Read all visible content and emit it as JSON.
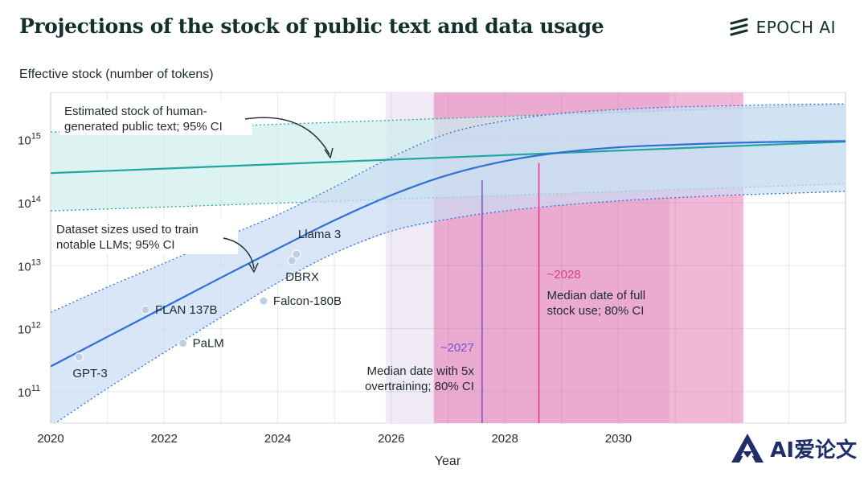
{
  "header": {
    "title": "Projections of the stock of public text and data usage",
    "logo_text": "EPOCH AI"
  },
  "watermark": {
    "text": "AI爱论文"
  },
  "colors": {
    "stock_line": "#1fa6a0",
    "stock_band": "#cdeeed",
    "dataset_line": "#2f6fd6",
    "dataset_band": "#c9dcf4",
    "pink_80": "#f2b6d6",
    "pink_50": "#e8a7cf",
    "lavender": "#efeaf6",
    "marker_2027": "#7a4fd0",
    "marker_2028": "#d23f86",
    "point": "#bfd0e0"
  },
  "chart_data": {
    "type": "line",
    "ylabel": "Effective stock (number of tokens)",
    "xlabel": "Year",
    "xlim": [
      2020,
      2034
    ],
    "ylim_log10": [
      10.5,
      15.75
    ],
    "y_scale": "log",
    "xticks": [
      2020,
      2022,
      2024,
      2026,
      2028,
      2030
    ],
    "yticks": [
      {
        "base": "10",
        "exp": "11",
        "log10": 11
      },
      {
        "base": "10",
        "exp": "12",
        "log10": 12
      },
      {
        "base": "10",
        "exp": "13",
        "log10": 13
      },
      {
        "base": "10",
        "exp": "14",
        "log10": 14
      },
      {
        "base": "10",
        "exp": "15",
        "log10": 15
      }
    ],
    "series": [
      {
        "key": "stock",
        "x": [
          2020,
          2034
        ],
        "log10_median": [
          14.47,
          14.97
        ],
        "log10_low": [
          13.87,
          14.3
        ],
        "log10_high": [
          15.12,
          15.56
        ]
      },
      {
        "key": "dataset",
        "x": [
          2020,
          2021,
          2022,
          2023,
          2024,
          2025,
          2026,
          2027,
          2028,
          2029,
          2030,
          2031,
          2032,
          2033,
          2034
        ],
        "log10_median": [
          11.4,
          11.87,
          12.34,
          12.81,
          13.27,
          13.72,
          14.12,
          14.44,
          14.66,
          14.8,
          14.88,
          14.92,
          14.95,
          14.97,
          14.98
        ],
        "log10_low": [
          10.45,
          11.05,
          11.62,
          12.18,
          12.73,
          13.2,
          13.55,
          13.74,
          13.87,
          13.96,
          14.03,
          14.08,
          14.12,
          14.15,
          14.18
        ],
        "log10_high": [
          12.26,
          12.66,
          13.04,
          13.43,
          13.81,
          14.25,
          14.72,
          15.1,
          15.3,
          15.42,
          15.48,
          15.52,
          15.54,
          15.56,
          15.57
        ]
      }
    ],
    "points": [
      {
        "label": "GPT-3",
        "x": 2020.5,
        "log10": 11.55,
        "label_pos": "below"
      },
      {
        "label": "FLAN 137B",
        "x": 2021.67,
        "log10": 12.3,
        "label_pos": "right"
      },
      {
        "label": "PaLM",
        "x": 2022.33,
        "log10": 11.77,
        "label_pos": "right"
      },
      {
        "label": "Falcon-180B",
        "x": 2023.75,
        "log10": 12.44,
        "label_pos": "right"
      },
      {
        "label": "DBRX",
        "x": 2024.25,
        "log10": 13.08,
        "label_pos": "below"
      },
      {
        "label": "Llama 3",
        "x": 2024.33,
        "log10": 13.18,
        "label_pos": "above"
      }
    ],
    "intervals": [
      {
        "key": "interval-5x",
        "x_start": 2025.9,
        "x_end": 2030.9
      },
      {
        "key": "interval-full",
        "x_start": 2026.75,
        "x_end": 2032.2
      }
    ],
    "markers": [
      {
        "key": "marker-2027",
        "x": 2027.6,
        "label": "~2027",
        "desc": [
          "Median date with 5x",
          "overtraining; 80% CI"
        ]
      },
      {
        "key": "marker-2028",
        "x": 2028.6,
        "label": "~2028",
        "desc": [
          "Median date of full",
          "stock use; 80% CI"
        ]
      }
    ],
    "annotations": [
      {
        "key": "annotation-stock",
        "lines": [
          "Estimated stock of human-",
          "generated public text; 95% CI"
        ]
      },
      {
        "key": "annotation-dataset",
        "lines": [
          "Dataset sizes used to train",
          "notable LLMs; 95% CI"
        ]
      }
    ]
  }
}
